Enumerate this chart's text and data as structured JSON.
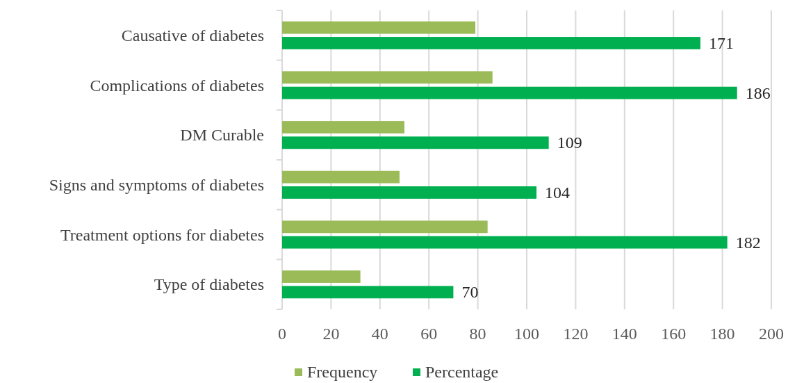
{
  "chart_data": {
    "type": "bar",
    "orientation": "horizontal",
    "categories": [
      "Causative of diabetes",
      "Complications of diabetes",
      "DM Curable",
      "Signs and symptoms of diabetes",
      "Treatment options for diabetes",
      "Type of diabetes"
    ],
    "series": [
      {
        "name": "Frequency",
        "color": "#9bbb59",
        "values": [
          79,
          86,
          50,
          48,
          84,
          32
        ]
      },
      {
        "name": "Percentage",
        "color": "#00b050",
        "values": [
          171,
          186,
          109,
          104,
          182,
          70
        ],
        "value_labels": [
          "171",
          "186",
          "109",
          "104",
          "182",
          "70"
        ]
      }
    ],
    "xlim": [
      0,
      200
    ],
    "xticks": [
      0,
      20,
      40,
      60,
      80,
      100,
      120,
      140,
      160,
      180,
      200
    ],
    "grid": "x",
    "legend": "bottom"
  }
}
